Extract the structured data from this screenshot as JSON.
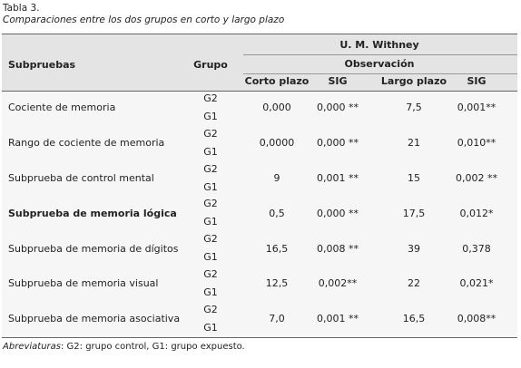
{
  "caption": {
    "label": "Tabla 3.",
    "title": "Comparaciones entre los dos grupos en corto y largo plazo"
  },
  "table": {
    "header": {
      "subpruebas": "Subpruebas",
      "grupo": "Grupo",
      "test": "U. M. Withney",
      "observacion": "Observación",
      "columns": [
        "Corto plazo",
        "SIG",
        "Largo plazo",
        "SIG"
      ]
    },
    "rows": [
      {
        "name": "Cociente de memoria",
        "groups": [
          "G2",
          "G1"
        ],
        "cells": [
          "0,000",
          "0,000 **",
          "7,5",
          "0,001**"
        ]
      },
      {
        "name": "Rango de cociente de memoria",
        "groups": [
          "G2",
          "G1"
        ],
        "cells": [
          "0,0000",
          "0,000 **",
          "21",
          "0,010**"
        ]
      },
      {
        "name": "Subprueba de control mental",
        "groups": [
          "G2",
          "G1"
        ],
        "cells": [
          "9",
          "0,001 **",
          "15",
          "0,002 **"
        ]
      },
      {
        "name": "Subprueba de memoria lógica",
        "groups": [
          "G2",
          "G1"
        ],
        "cells": [
          "0,5",
          "0,000 **",
          "17,5",
          "0,012*"
        ]
      },
      {
        "name": "Subprueba de memoria de dígitos",
        "groups": [
          "G2",
          "G1"
        ],
        "cells": [
          "16,5",
          "0,008 **",
          "39",
          "0,378"
        ]
      },
      {
        "name": "Subprueba de memoria visual",
        "groups": [
          "G2",
          "G1"
        ],
        "cells": [
          "12,5",
          "0,002**",
          "22",
          "0,021*"
        ]
      },
      {
        "name": "Subprueba de memoria asociativa",
        "groups": [
          "G2",
          "G1"
        ],
        "cells": [
          "7,0",
          "0,001 **",
          "16,5",
          "0,008**"
        ]
      }
    ]
  },
  "footnote": {
    "term": "Abreviaturas",
    "text": ": G2: grupo control, G1: grupo expuesto."
  }
}
